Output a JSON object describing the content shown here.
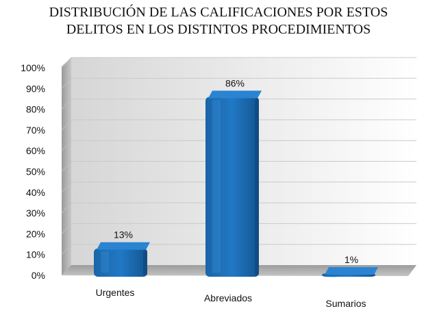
{
  "chart_data": {
    "type": "bar",
    "title_lines": [
      "DISTRIBUCIÓN DE LAS CALIFICACIONES POR ESTOS",
      "DELITOS EN  LOS DISTINTOS PROCEDIMIENTOS"
    ],
    "categories": [
      "Urgentes",
      "Abreviados",
      "Sumarios"
    ],
    "values": [
      13,
      86,
      1
    ],
    "data_labels": [
      "13%",
      "86%",
      "1%"
    ],
    "yticks": [
      "0%",
      "10%",
      "20%",
      "30%",
      "40%",
      "50%",
      "60%",
      "70%",
      "80%",
      "90%",
      "100%"
    ],
    "ylim": [
      0,
      100
    ],
    "grid": true,
    "legend": "none",
    "bar_color": "#1f6fb8"
  }
}
